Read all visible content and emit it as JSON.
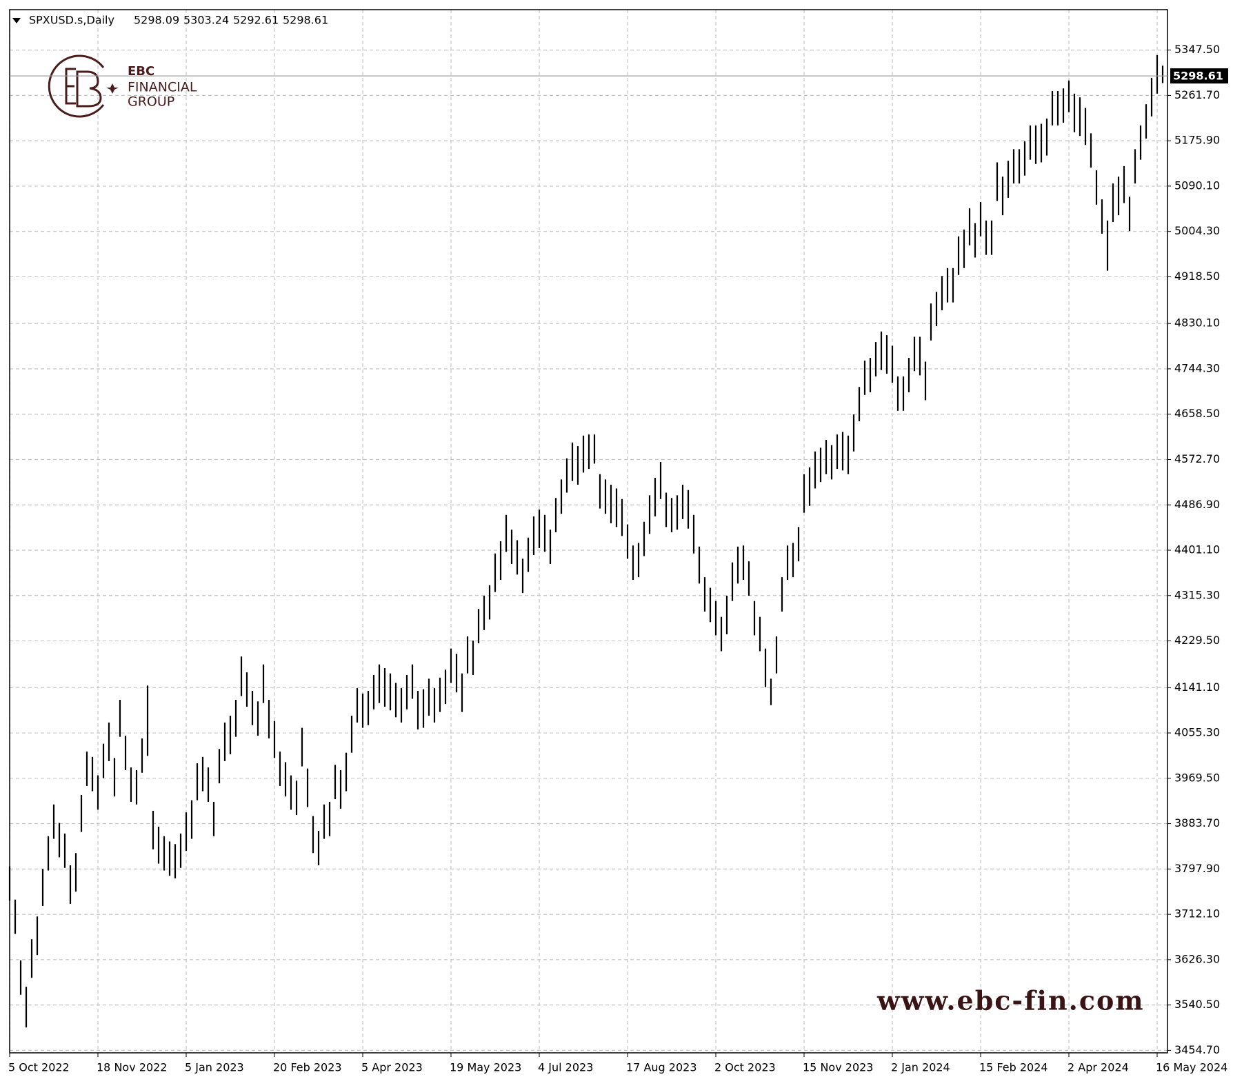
{
  "chart_data": {
    "type": "ohlc",
    "header": {
      "symbol": "SPXUSD.s,Daily",
      "open": 5298.09,
      "high": 5303.24,
      "low": 5292.61,
      "close": 5298.61
    },
    "logo": {
      "name": "EBC",
      "line1": "FINANCIAL",
      "line2": "GROUP"
    },
    "watermark": "www.ebc-fin.com",
    "color": "#000000",
    "grid": true,
    "ylim": [
      3450,
      5424
    ],
    "yticks": [
      {
        "value": 5347.5,
        "label": "5347.50"
      },
      {
        "value": 5261.7,
        "label": "5261.70"
      },
      {
        "value": 5175.9,
        "label": "5175.90"
      },
      {
        "value": 5090.1,
        "label": "5090.10"
      },
      {
        "value": 5004.3,
        "label": "5004.30"
      },
      {
        "value": 4918.5,
        "label": "4918.50"
      },
      {
        "value": 4830.1,
        "label": "4830.10"
      },
      {
        "value": 4744.3,
        "label": "4744.30"
      },
      {
        "value": 4658.5,
        "label": "4658.50"
      },
      {
        "value": 4572.7,
        "label": "4572.70"
      },
      {
        "value": 4486.9,
        "label": "4486.90"
      },
      {
        "value": 4401.1,
        "label": "4401.10"
      },
      {
        "value": 4315.3,
        "label": "4315.30"
      },
      {
        "value": 4229.5,
        "label": "4229.50"
      },
      {
        "value": 4141.1,
        "label": "4141.10"
      },
      {
        "value": 4055.3,
        "label": "4055.30"
      },
      {
        "value": 3969.5,
        "label": "3969.50"
      },
      {
        "value": 3883.7,
        "label": "3883.70"
      },
      {
        "value": 3797.9,
        "label": "3797.90"
      },
      {
        "value": 3712.1,
        "label": "3712.10"
      },
      {
        "value": 3626.3,
        "label": "3626.30"
      },
      {
        "value": 3540.5,
        "label": "3540.50"
      },
      {
        "value": 3454.7,
        "label": "3454.70"
      }
    ],
    "categories": [
      "5 Oct 2022",
      null,
      null,
      null,
      null,
      null,
      null,
      null,
      null,
      null,
      null,
      null,
      null,
      null,
      null,
      null,
      "18 Nov 2022",
      null,
      null,
      null,
      null,
      null,
      null,
      null,
      null,
      null,
      null,
      null,
      null,
      null,
      null,
      null,
      "5 Jan 2023",
      null,
      null,
      null,
      null,
      null,
      null,
      null,
      null,
      null,
      null,
      null,
      null,
      null,
      null,
      null,
      "20 Feb 2023",
      null,
      null,
      null,
      null,
      null,
      null,
      null,
      null,
      null,
      null,
      null,
      null,
      null,
      null,
      null,
      "5 Apr 2023",
      null,
      null,
      null,
      null,
      null,
      null,
      null,
      null,
      null,
      null,
      null,
      null,
      null,
      null,
      null,
      "19 May 2023",
      null,
      null,
      null,
      null,
      null,
      null,
      null,
      null,
      null,
      null,
      null,
      null,
      null,
      null,
      null,
      "4 Jul 2023",
      null,
      null,
      null,
      null,
      null,
      null,
      null,
      null,
      null,
      null,
      null,
      null,
      null,
      null,
      null,
      "17 Aug 2023",
      null,
      null,
      null,
      null,
      null,
      null,
      null,
      null,
      null,
      null,
      null,
      null,
      null,
      null,
      null,
      "2 Oct 2023",
      null,
      null,
      null,
      null,
      null,
      null,
      null,
      null,
      null,
      null,
      null,
      null,
      null,
      null,
      null,
      "15 Nov 2023",
      null,
      null,
      null,
      null,
      null,
      null,
      null,
      null,
      null,
      null,
      null,
      null,
      null,
      null,
      null,
      "2 Jan 2024",
      null,
      null,
      null,
      null,
      null,
      null,
      null,
      null,
      null,
      null,
      null,
      null,
      null,
      null,
      null,
      "15 Feb 2024",
      null,
      null,
      null,
      null,
      null,
      null,
      null,
      null,
      null,
      null,
      null,
      null,
      null,
      null,
      null,
      "2 Apr 2024",
      null,
      null,
      null,
      null,
      null,
      null,
      null,
      null,
      null,
      null,
      null,
      null,
      null,
      null,
      null,
      "16 May 2024",
      null
    ],
    "high": [
      3803,
      3740,
      3625,
      3575,
      3665,
      3708,
      3798,
      3860,
      3920,
      3885,
      3865,
      3805,
      3828,
      3938,
      4020,
      4010,
      3975,
      4035,
      4075,
      4008,
      4118,
      4050,
      3990,
      3985,
      4045,
      4145,
      3908,
      3878,
      3860,
      3850,
      3845,
      3865,
      3905,
      3928,
      3998,
      4010,
      3990,
      3925,
      4025,
      4075,
      4088,
      4118,
      4200,
      4170,
      4135,
      4115,
      4185,
      4118,
      4078,
      4020,
      4000,
      3975,
      3965,
      4065,
      3988,
      3898,
      3870,
      3920,
      3925,
      3995,
      3985,
      4018,
      4088,
      4140,
      4130,
      4135,
      4165,
      4185,
      4178,
      4168,
      4150,
      4140,
      4165,
      4185,
      4135,
      4138,
      4158,
      4140,
      4160,
      4175,
      4215,
      4205,
      4168,
      4238,
      4230,
      4290,
      4315,
      4335,
      4395,
      4418,
      4468,
      4440,
      4420,
      4385,
      4425,
      4465,
      4478,
      4468,
      4440,
      4500,
      4535,
      4575,
      4605,
      4598,
      4618,
      4620,
      4620,
      4545,
      4535,
      4525,
      4518,
      4498,
      4450,
      4410,
      4415,
      4455,
      4505,
      4538,
      4568,
      4510,
      4500,
      4505,
      4525,
      4515,
      4468,
      4408,
      4350,
      4330,
      4305,
      4275,
      4315,
      4378,
      4408,
      4410,
      4380,
      4305,
      4275,
      4215,
      4158,
      4238,
      4350,
      4410,
      4415,
      4445,
      4545,
      4558,
      4588,
      4595,
      4610,
      4600,
      4620,
      4625,
      4618,
      4658,
      4710,
      4760,
      4765,
      4795,
      4815,
      4808,
      4788,
      4730,
      4730,
      4765,
      4805,
      4805,
      4758,
      4868,
      4890,
      4920,
      4935,
      4935,
      4995,
      5008,
      5048,
      5020,
      5060,
      5025,
      5025,
      5135,
      5108,
      5138,
      5160,
      5160,
      5175,
      5205,
      5205,
      5208,
      5218,
      5270,
      5270,
      5275,
      5290,
      5265,
      5258,
      5238,
      5190,
      5120,
      5065,
      5025,
      5095,
      5108,
      5128,
      5070,
      5160,
      5205,
      5245,
      5295,
      5338,
      5318
    ],
    "low": [
      3738,
      3675,
      3560,
      3498,
      3592,
      3635,
      3728,
      3795,
      3855,
      3820,
      3800,
      3732,
      3755,
      3868,
      3955,
      3945,
      3910,
      3970,
      4002,
      3935,
      4048,
      3985,
      3925,
      3920,
      3980,
      4012,
      3835,
      3808,
      3795,
      3785,
      3780,
      3800,
      3832,
      3855,
      3928,
      3945,
      3925,
      3860,
      3960,
      4002,
      4015,
      4048,
      4125,
      4105,
      4070,
      4050,
      4112,
      4045,
      4008,
      3955,
      3935,
      3910,
      3900,
      3992,
      3915,
      3828,
      3805,
      3855,
      3860,
      3930,
      3912,
      3945,
      4018,
      4075,
      4065,
      4070,
      4100,
      4112,
      4105,
      4098,
      4085,
      4075,
      4100,
      4120,
      4062,
      4065,
      4088,
      4075,
      4095,
      4110,
      4150,
      4132,
      4095,
      4168,
      4165,
      4225,
      4250,
      4270,
      4322,
      4345,
      4398,
      4375,
      4355,
      4320,
      4360,
      4392,
      4405,
      4398,
      4375,
      4435,
      4470,
      4510,
      4532,
      4525,
      4548,
      4555,
      4565,
      4480,
      4470,
      4452,
      4445,
      4428,
      4385,
      4345,
      4350,
      4390,
      4432,
      4465,
      4498,
      4445,
      4435,
      4440,
      4460,
      4442,
      4395,
      4338,
      4285,
      4265,
      4240,
      4210,
      4242,
      4305,
      4338,
      4345,
      4315,
      4240,
      4210,
      4142,
      4108,
      4168,
      4285,
      4345,
      4350,
      4380,
      4472,
      4485,
      4518,
      4530,
      4545,
      4535,
      4555,
      4552,
      4545,
      4588,
      4645,
      4695,
      4700,
      4730,
      4742,
      4735,
      4718,
      4665,
      4665,
      4700,
      4740,
      4732,
      4685,
      4798,
      4825,
      4855,
      4870,
      4870,
      4922,
      4935,
      4978,
      4955,
      4995,
      4960,
      4960,
      5062,
      5035,
      5068,
      5095,
      5095,
      5110,
      5140,
      5132,
      5135,
      5148,
      5205,
      5205,
      5210,
      5230,
      5192,
      5185,
      5168,
      5125,
      5055,
      5000,
      4930,
      5022,
      5035,
      5058,
      5005,
      5095,
      5140,
      5180,
      5222,
      5265,
      5285
    ]
  }
}
